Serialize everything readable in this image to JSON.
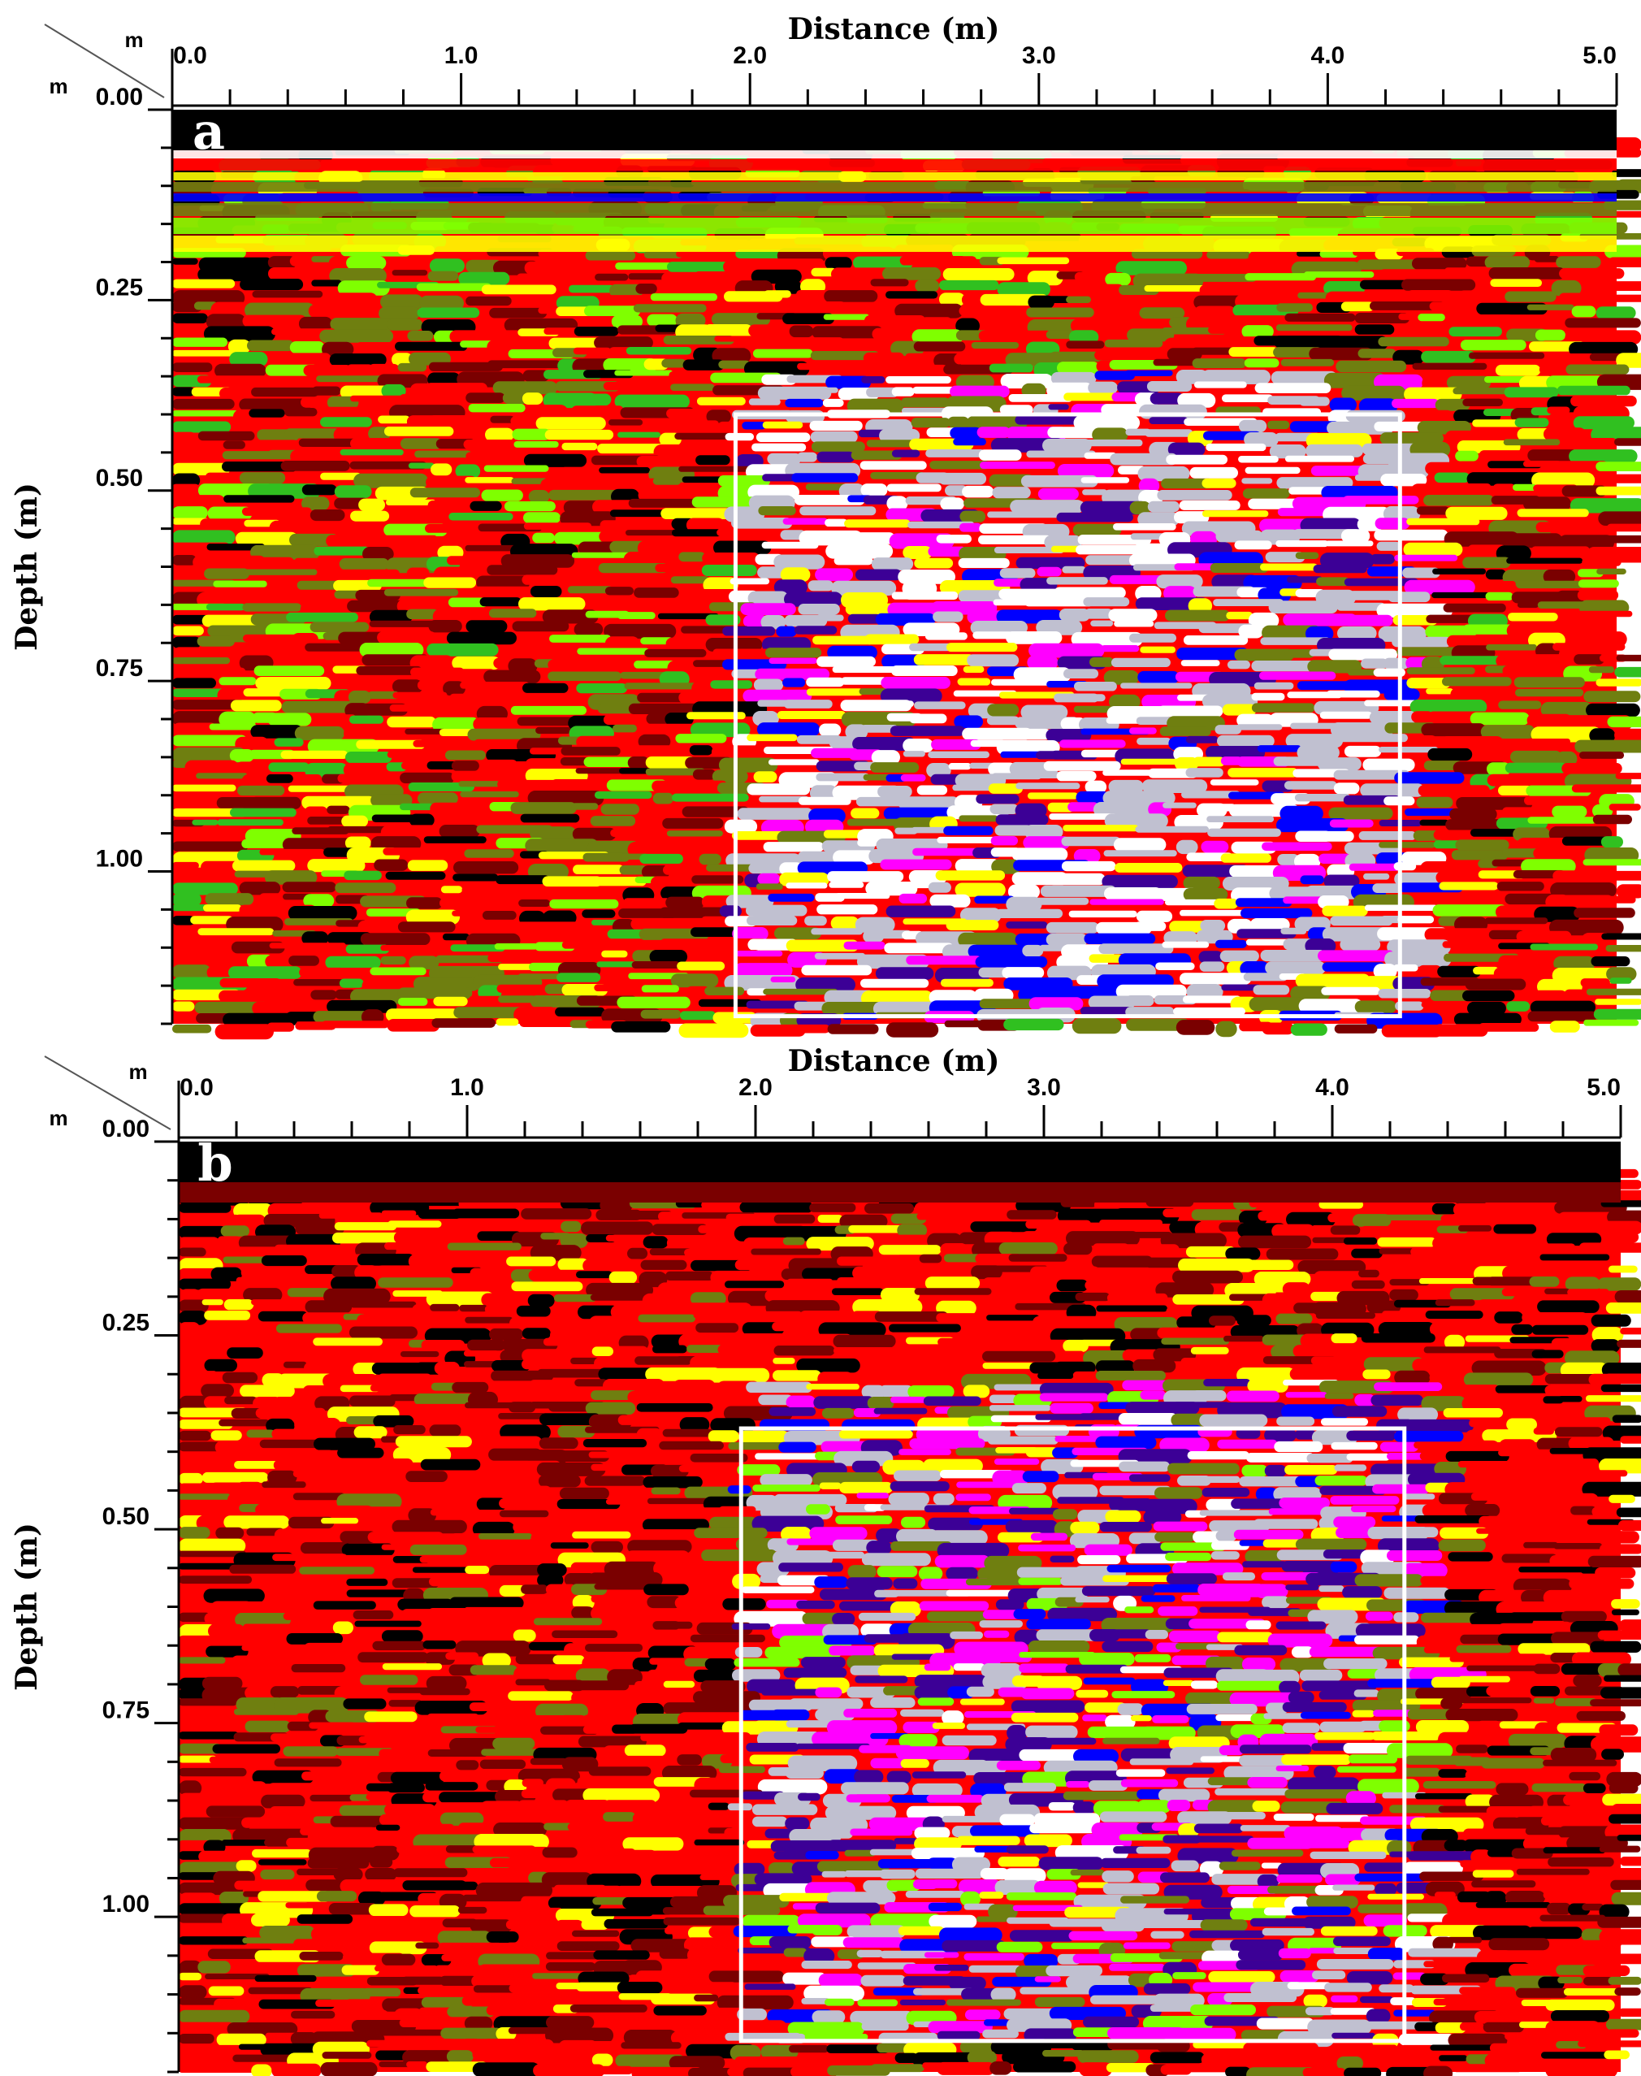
{
  "chart_data": [
    {
      "type": "heatmap",
      "panel_label": "a",
      "xlabel": "Distance (m)",
      "ylabel": "Depth (m)",
      "x_unit": "m",
      "y_unit": "m",
      "xlim": [
        0,
        5.0
      ],
      "ylim": [
        0,
        1.2
      ],
      "x_ticks": [
        0,
        1,
        2,
        3,
        4,
        5
      ],
      "x_tick_labels": [
        "0.0",
        "1.0",
        "2.0",
        "3.0",
        "4.0",
        "5.0"
      ],
      "y_ticks": [
        0,
        0.25,
        0.5,
        0.75,
        1.0
      ],
      "y_tick_labels": [
        "0.00",
        "0.25",
        "0.50",
        "0.75",
        "1.00"
      ],
      "highlight_box": {
        "x": [
          1.95,
          4.25
        ],
        "y": [
          0.4,
          1.19
        ],
        "color": "#ffffff"
      },
      "colormap": [
        "#000000",
        "#7a0000",
        "#ff0000",
        "#6f7f10",
        "#30c020",
        "#7fff00",
        "#ffff00",
        "#0000ff",
        "#3c0096",
        "#ff00ff",
        "#c0c0d0",
        "#ffffff"
      ]
    },
    {
      "type": "heatmap",
      "panel_label": "b",
      "xlabel": "Distance (m)",
      "ylabel": "Depth (m)",
      "x_unit": "m",
      "y_unit": "m",
      "xlim": [
        0,
        5.0
      ],
      "ylim": [
        0,
        1.2
      ],
      "x_ticks": [
        0,
        1,
        2,
        3,
        4,
        5
      ],
      "x_tick_labels": [
        "0.0",
        "1.0",
        "2.0",
        "3.0",
        "4.0",
        "5.0"
      ],
      "y_ticks": [
        0,
        0.25,
        0.5,
        0.75,
        1.0
      ],
      "y_tick_labels": [
        "0.00",
        "0.25",
        "0.50",
        "0.75",
        "1.00"
      ],
      "highlight_box": {
        "x": [
          1.95,
          4.25
        ],
        "y": [
          0.37,
          1.16
        ],
        "color": "#ffffff"
      },
      "colormap": [
        "#000000",
        "#7a0000",
        "#ff0000",
        "#6f7f10",
        "#30c020",
        "#7fff00",
        "#ffff00",
        "#0000ff",
        "#3c0096",
        "#ff00ff",
        "#c0c0d0",
        "#ffffff"
      ]
    }
  ]
}
